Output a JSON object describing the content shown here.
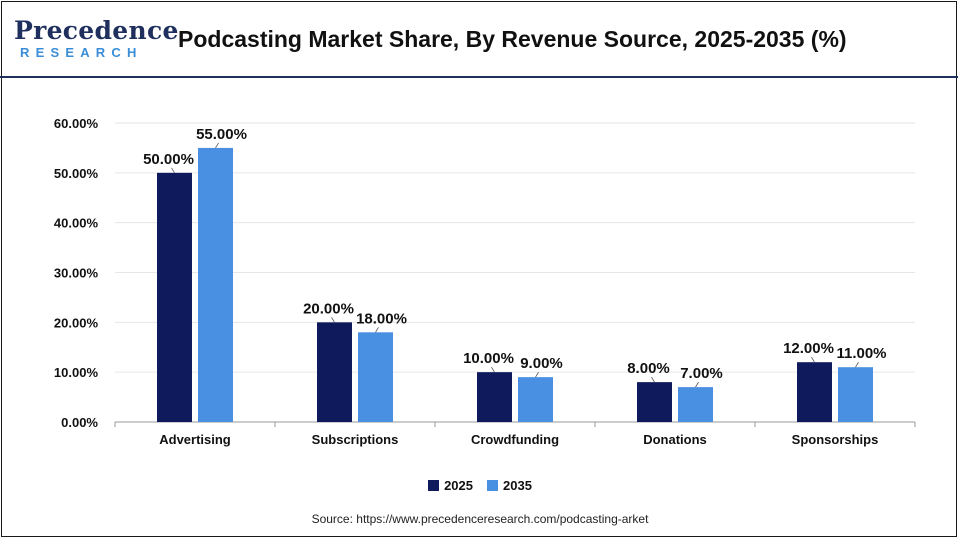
{
  "header": {
    "logo_name": "Precedence",
    "logo_sub": "RESEARCH",
    "title": "Podcasting Market Share, By Revenue Source, 2025-2035 (%)"
  },
  "colors": {
    "series_2025": "#0e1a5c",
    "series_2035": "#4a90e2",
    "brand_dark": "#1f2f5e",
    "brand_light": "#3a8ed8"
  },
  "chart_data": {
    "type": "bar",
    "title": "Podcasting Market Share, By Revenue Source, 2025-2035 (%)",
    "categories": [
      "Advertising",
      "Subscriptions",
      "Crowdfunding",
      "Donations",
      "Sponsorships"
    ],
    "series": [
      {
        "name": "2025",
        "values": [
          50.0,
          20.0,
          10.0,
          8.0,
          12.0
        ],
        "labels": [
          "50.00%",
          "20.00%",
          "10.00%",
          "8.00%",
          "12.00%"
        ]
      },
      {
        "name": "2035",
        "values": [
          55.0,
          18.0,
          9.0,
          7.0,
          11.0
        ],
        "labels": [
          "55.00%",
          "18.00%",
          "9.00%",
          "7.00%",
          "11.00%"
        ]
      }
    ],
    "yticks": [
      "0.00%",
      "10.00%",
      "20.00%",
      "30.00%",
      "40.00%",
      "50.00%",
      "60.00%"
    ],
    "ylim": [
      0,
      60
    ],
    "grid": true,
    "legend": "bottom-center"
  },
  "legend": {
    "items": [
      "2025",
      "2035"
    ]
  },
  "source": "Source: https://www.precedenceresearch.com/podcasting-arket"
}
